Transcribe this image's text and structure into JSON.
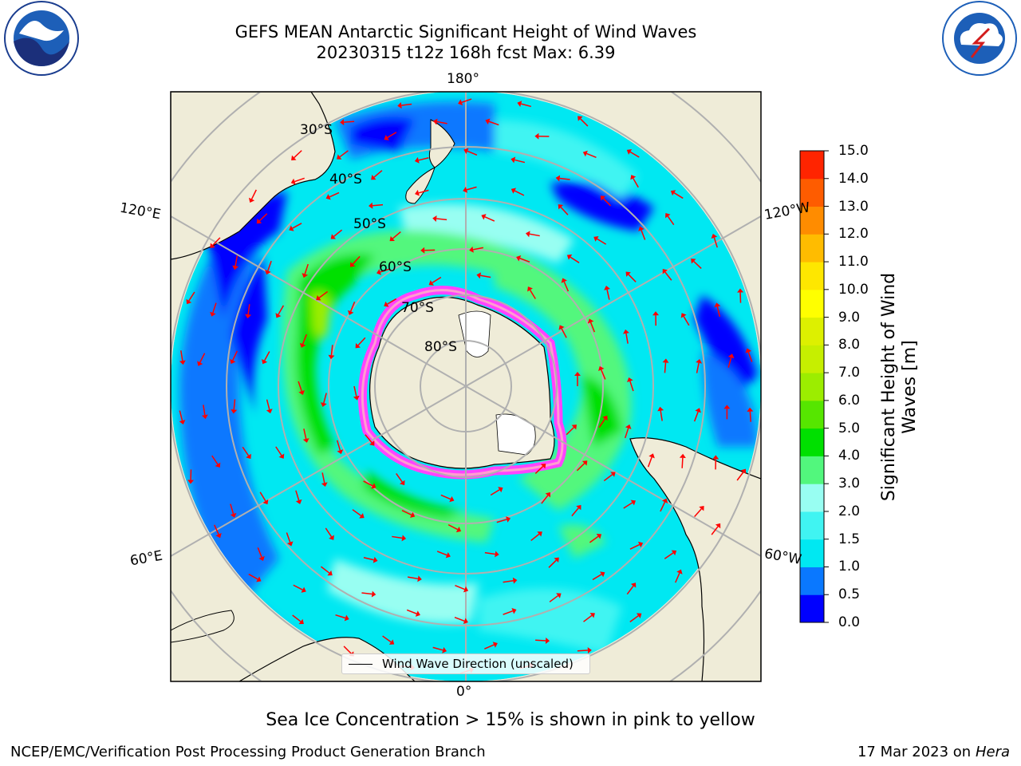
{
  "title_line1": "GEFS MEAN Antarctic Significant Height of Wind Waves",
  "title_line2": "20230315 t12z 168h fcst   Max: 6.39",
  "note": "Sea Ice Concentration > 15% is shown in pink to yellow",
  "footer_left": "NCEP/EMC/Verification Post Processing Product Generation Branch",
  "footer_date": "17 Mar 2023 on",
  "footer_machine": "Hera",
  "legend_label": "Wind Wave Direction (unscaled)",
  "logos": {
    "noaa_text": "NOAA",
    "nws_text": "NATIONAL WEATHER SERVICE"
  },
  "colorbar": {
    "title_line1": "Significant Height of Wind",
    "title_line2": "Waves [m]",
    "ticks": [
      "0.0",
      "0.5",
      "1.0",
      "1.5",
      "2.0",
      "3.0",
      "4.0",
      "5.0",
      "6.0",
      "7.0",
      "8.0",
      "9.0",
      "10.0",
      "11.0",
      "12.0",
      "13.0",
      "14.0",
      "15.0"
    ],
    "colors": [
      "#0000ff",
      "#0a78ff",
      "#00e8f2",
      "#40f4f2",
      "#98fef2",
      "#52f77d",
      "#00e000",
      "#56e600",
      "#9ced00",
      "#c6ef00",
      "#ddf000",
      "#ffff00",
      "#fee700",
      "#ffbc00",
      "#ff8c00",
      "#fe5c00",
      "#ff2400"
    ]
  },
  "map": {
    "meridian_labels": {
      "top": "180°",
      "bottom": "0°",
      "left_upper": "120°E",
      "left_lower": "60°E",
      "right_upper": "120°W",
      "right_lower": "60°W"
    },
    "lat_labels": [
      "30°S",
      "40°S",
      "50°S",
      "60°S",
      "70°S",
      "80°S"
    ],
    "colors": {
      "ocean_low": "#0000ff",
      "land": "#efecd8",
      "ice": "#ff44ff",
      "arrow": "#ff0000",
      "grid": "#b0b0b0"
    }
  }
}
